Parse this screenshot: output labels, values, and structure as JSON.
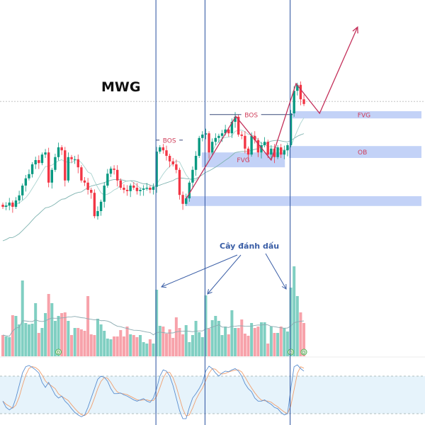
{
  "chart_data": {
    "type": "candlestick",
    "title": "MWG",
    "annotation_text": "Cây đánh dấu",
    "colors": {
      "up": "#089981",
      "down": "#f23645",
      "volume_up": "#80cfc2",
      "volume_down": "#f7a2aa",
      "zone": "#c3d2f7",
      "marker_line": "#3a5ea6",
      "zigzag": "#c4305a",
      "label": "#d0405c",
      "ma_fast": "#a9d3cf",
      "ma_slow": "#7fb3b0",
      "stoch_k": "#5b8fd0",
      "stoch_d": "#f0a070",
      "stoch_band": "#e6f3fb"
    },
    "price_ylim": [
      25,
      65
    ],
    "closes": [
      33.0,
      33.3,
      34.0,
      33.0,
      34.5,
      35.7,
      38.0,
      39.7,
      40.7,
      43.0,
      44.0,
      43.3,
      45.3,
      45.8,
      38.7,
      41.7,
      44.7,
      47.0,
      46.3,
      39.2,
      44.7,
      44.2,
      44.2,
      42.3,
      39.2,
      38.7,
      37.0,
      36.3,
      30.8,
      32.0,
      34.2,
      38.0,
      40.8,
      42.0,
      41.7,
      39.2,
      37.5,
      37.0,
      36.7,
      38.0,
      37.5,
      36.7,
      37.0,
      37.3,
      37.5,
      37.0,
      37.7,
      46.0,
      47.0,
      46.3,
      45.0,
      43.7,
      43.0,
      41.7,
      35.8,
      33.7,
      35.0,
      38.7,
      41.7,
      45.0,
      49.2,
      50.0,
      50.3,
      45.8,
      48.3,
      49.2,
      49.7,
      50.3,
      51.2,
      50.3,
      53.0,
      54.2,
      50.0,
      49.7,
      46.7,
      45.3,
      49.7,
      48.7,
      45.8,
      47.5,
      48.3,
      45.3,
      46.7,
      44.7,
      47.0,
      45.3,
      46.3,
      47.5,
      55.0,
      60.3,
      61.7,
      58.3,
      57.2
    ],
    "volume_ylim": [
      0,
      130
    ],
    "volume": [
      30,
      28,
      27,
      58,
      57,
      45,
      107,
      47,
      45,
      46,
      75,
      33,
      40,
      61,
      88,
      75,
      50,
      57,
      61,
      62,
      50,
      30,
      40,
      40,
      38,
      36,
      85,
      31,
      30,
      53,
      45,
      36,
      25,
      24,
      28,
      28,
      37,
      28,
      42,
      31,
      30,
      27,
      30,
      20,
      18,
      24,
      18,
      94,
      43,
      42,
      32,
      38,
      26,
      55,
      40,
      31,
      44,
      20,
      30,
      50,
      34,
      27,
      86,
      39,
      51,
      57,
      50,
      30,
      42,
      31,
      65,
      40,
      40,
      52,
      32,
      29,
      47,
      40,
      42,
      48,
      48,
      18,
      42,
      33,
      33,
      42,
      40,
      35,
      97,
      127,
      85,
      62,
      47
    ],
    "volume_markers": [
      {
        "index": 17,
        "label": "D"
      },
      {
        "index": 88,
        "label": "D"
      },
      {
        "index": 92,
        "label": "D"
      }
    ],
    "stochastic": {
      "ylim": [
        0,
        100
      ],
      "bands": [
        20,
        80
      ],
      "k": [
        40,
        30,
        26,
        30,
        45,
        65,
        85,
        95,
        97,
        94,
        90,
        85,
        70,
        62,
        70,
        60,
        50,
        45,
        48,
        40,
        35,
        28,
        22,
        18,
        15,
        18,
        30,
        45,
        60,
        75,
        80,
        78,
        72,
        60,
        52,
        52,
        53,
        50,
        48,
        45,
        42,
        40,
        42,
        44,
        40,
        38,
        45,
        60,
        80,
        90,
        88,
        80,
        65,
        45,
        25,
        12,
        12,
        30,
        45,
        52,
        60,
        70,
        88,
        96,
        92,
        85,
        80,
        85,
        88,
        87,
        90,
        92,
        88,
        80,
        68,
        60,
        55,
        45,
        40,
        40,
        42,
        38,
        35,
        30,
        28,
        22,
        18,
        20,
        60,
        95,
        98,
        92,
        88
      ]
    },
    "price_line": 57.8,
    "marker_candles": [
      47,
      62,
      88
    ],
    "zones": [
      {
        "label": "FVG",
        "top": 55.5,
        "bottom": 53.8,
        "start": 88.5,
        "extend": true
      },
      {
        "label": "OB",
        "top": 47.3,
        "bottom": 44.5,
        "start": 87.5,
        "extend": true
      },
      {
        "label": "FVG",
        "top": 45.8,
        "bottom": 42.3,
        "start": 60.8,
        "end": 86.2
      },
      {
        "label": "",
        "top": 35.5,
        "bottom": 33.2,
        "start": 55.8,
        "extend": true
      }
    ],
    "bos": [
      {
        "label": "BOS",
        "price": 48.7,
        "start": 46.8,
        "end": 55.0
      },
      {
        "label": "BOS",
        "price": 54.7,
        "start": 63.2,
        "end": 88.6
      }
    ],
    "zigzag": [
      [
        56.1,
        35.0
      ],
      [
        71.2,
        54.3
      ],
      [
        82.0,
        44.0
      ],
      [
        89.6,
        62.0
      ],
      [
        96.8,
        55.0
      ],
      [
        108.4,
        75.3
      ]
    ]
  }
}
